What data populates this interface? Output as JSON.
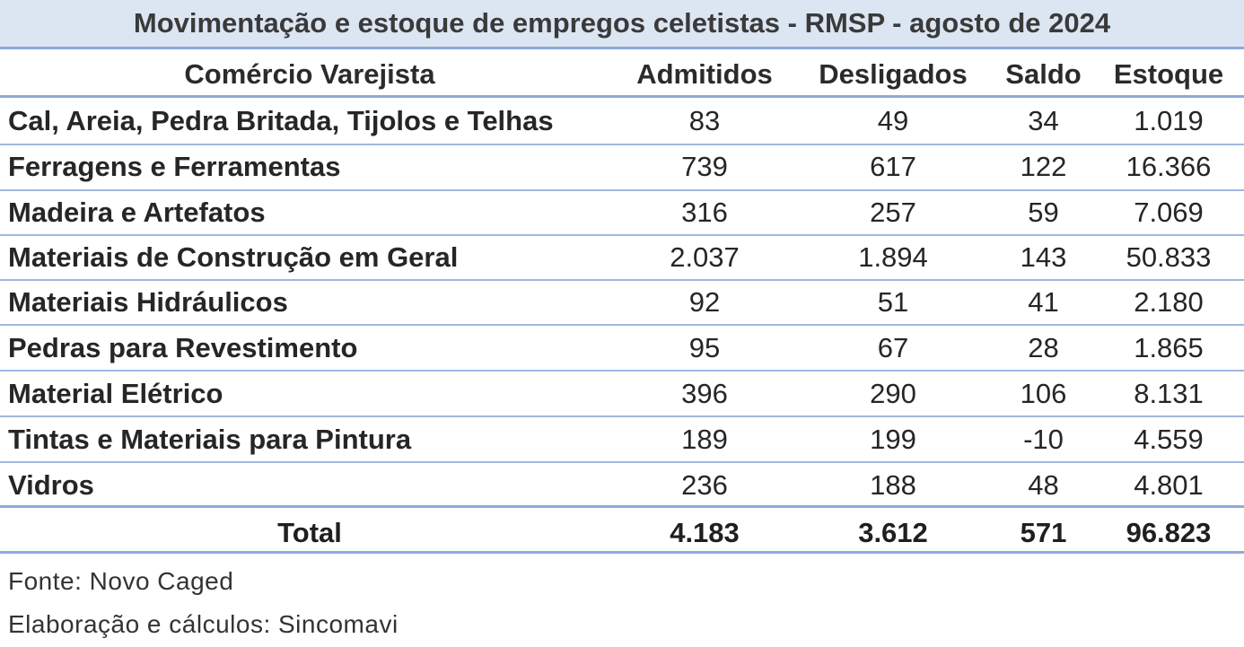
{
  "title": "Movimentação e estoque de empregos celetistas - RMSP - agosto de 2024",
  "header": {
    "sector": "Comércio Varejista",
    "admitidos": "Admitidos",
    "desligados": "Desligados",
    "saldo": "Saldo",
    "estoque": "Estoque"
  },
  "rows": [
    {
      "name": "Cal, Areia, Pedra Britada, Tijolos e Telhas",
      "admitidos": "83",
      "desligados": "49",
      "saldo": "34",
      "estoque": "1.019"
    },
    {
      "name": "Ferragens e Ferramentas",
      "admitidos": "739",
      "desligados": "617",
      "saldo": "122",
      "estoque": "16.366"
    },
    {
      "name": "Madeira e Artefatos",
      "admitidos": "316",
      "desligados": "257",
      "saldo": "59",
      "estoque": "7.069"
    },
    {
      "name": "Materiais de Construção em Geral",
      "admitidos": "2.037",
      "desligados": "1.894",
      "saldo": "143",
      "estoque": "50.833"
    },
    {
      "name": "Materiais Hidráulicos",
      "admitidos": "92",
      "desligados": "51",
      "saldo": "41",
      "estoque": "2.180"
    },
    {
      "name": "Pedras para Revestimento",
      "admitidos": "95",
      "desligados": "67",
      "saldo": "28",
      "estoque": "1.865"
    },
    {
      "name": "Material Elétrico",
      "admitidos": "396",
      "desligados": "290",
      "saldo": "106",
      "estoque": "8.131"
    },
    {
      "name": "Tintas e Materiais para Pintura",
      "admitidos": "189",
      "desligados": "199",
      "saldo": "-10",
      "estoque": "4.559"
    },
    {
      "name": "Vidros",
      "admitidos": "236",
      "desligados": "188",
      "saldo": "48",
      "estoque": "4.801"
    }
  ],
  "total": {
    "label": "Total",
    "admitidos": "4.183",
    "desligados": "3.612",
    "saldo": "571",
    "estoque": "96.823"
  },
  "notes": {
    "source": "Fonte: Novo Caged",
    "elaboration": "Elaboração e cálculos: Sincomavi"
  },
  "colors": {
    "title_background": "#dce6f2",
    "rule": "#8eaadb"
  }
}
